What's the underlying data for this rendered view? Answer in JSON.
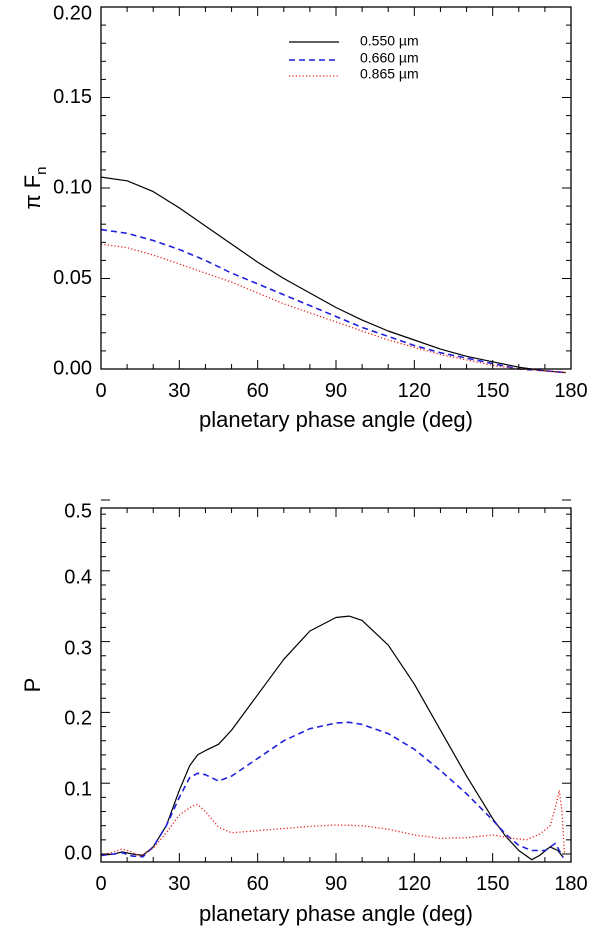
{
  "chart_data": [
    {
      "type": "line",
      "id": "top",
      "xlabel": "planetary phase angle (deg)",
      "ylabel": "π F",
      "ylabel_sub": "n",
      "xlim": [
        0,
        180
      ],
      "ylim": [
        0.0,
        0.2
      ],
      "xticks": [
        0,
        30,
        60,
        90,
        120,
        150,
        180
      ],
      "yticks": [
        0.0,
        0.05,
        0.1,
        0.15,
        0.2
      ],
      "ytick_labels": [
        "0.00",
        "0.05",
        "0.10",
        "0.15",
        "0.20"
      ],
      "legend": "top-center",
      "series": [
        {
          "name": "0.550 µm",
          "color": "#000000",
          "style": "solid",
          "x": [
            0,
            10,
            20,
            30,
            40,
            50,
            60,
            70,
            80,
            90,
            100,
            110,
            120,
            130,
            140,
            150,
            160,
            170,
            178
          ],
          "y": [
            0.106,
            0.104,
            0.098,
            0.089,
            0.079,
            0.069,
            0.059,
            0.05,
            0.042,
            0.034,
            0.027,
            0.021,
            0.016,
            0.011,
            0.007,
            0.004,
            0.001,
            -0.001,
            -0.002
          ]
        },
        {
          "name": "0.660 µm",
          "color": "#1f1fdd",
          "style": "dashed",
          "x": [
            0,
            10,
            20,
            30,
            40,
            50,
            60,
            70,
            80,
            90,
            100,
            110,
            120,
            130,
            140,
            150,
            160,
            170,
            178
          ],
          "y": [
            0.077,
            0.075,
            0.071,
            0.066,
            0.06,
            0.053,
            0.047,
            0.041,
            0.035,
            0.029,
            0.023,
            0.018,
            0.013,
            0.009,
            0.006,
            0.003,
            0.0,
            -0.001,
            -0.002
          ]
        },
        {
          "name": "0.865 µm",
          "color": "#e8211d",
          "style": "dotted",
          "x": [
            0,
            10,
            20,
            30,
            40,
            50,
            60,
            70,
            80,
            90,
            100,
            110,
            120,
            130,
            140,
            150,
            160,
            170,
            178
          ],
          "y": [
            0.069,
            0.067,
            0.063,
            0.058,
            0.053,
            0.048,
            0.042,
            0.036,
            0.031,
            0.026,
            0.021,
            0.016,
            0.012,
            0.008,
            0.005,
            0.002,
            0.0,
            -0.001,
            -0.002
          ]
        }
      ]
    },
    {
      "type": "line",
      "id": "bottom",
      "xlabel": "planetary phase angle (deg)",
      "ylabel": "P",
      "xlim": [
        0,
        180
      ],
      "ylim": [
        0.0,
        0.5
      ],
      "xticks": [
        0,
        30,
        60,
        90,
        120,
        150,
        180
      ],
      "yticks": [
        0.0,
        0.1,
        0.2,
        0.3,
        0.4,
        0.5
      ],
      "ytick_labels": [
        "0.0",
        "0.1",
        "0.2",
        "0.3",
        "0.4",
        "0.5"
      ],
      "series": [
        {
          "name": "0.550 µm",
          "color": "#000000",
          "style": "solid",
          "x": [
            0,
            5,
            8,
            12,
            16,
            20,
            25,
            30,
            34,
            37,
            40,
            45,
            50,
            60,
            70,
            80,
            90,
            95,
            100,
            110,
            120,
            130,
            140,
            150,
            155,
            160,
            165,
            168,
            172,
            175,
            177
          ],
          "y": [
            -0.002,
            0.0,
            0.003,
            0.0,
            -0.002,
            0.01,
            0.04,
            0.09,
            0.125,
            0.14,
            0.146,
            0.155,
            0.175,
            0.225,
            0.275,
            0.315,
            0.334,
            0.336,
            0.33,
            0.295,
            0.24,
            0.175,
            0.11,
            0.05,
            0.025,
            0.005,
            -0.008,
            -0.002,
            0.01,
            0.005,
            -0.005
          ]
        },
        {
          "name": "0.660 µm",
          "color": "#1f1fdd",
          "style": "dashed",
          "x": [
            0,
            5,
            8,
            12,
            16,
            20,
            25,
            30,
            34,
            37,
            40,
            45,
            50,
            60,
            70,
            80,
            90,
            95,
            100,
            110,
            120,
            130,
            140,
            150,
            155,
            160,
            165,
            170,
            174,
            177
          ],
          "y": [
            -0.002,
            0.0,
            0.002,
            -0.003,
            -0.004,
            0.01,
            0.04,
            0.08,
            0.108,
            0.114,
            0.112,
            0.103,
            0.11,
            0.135,
            0.16,
            0.177,
            0.185,
            0.186,
            0.183,
            0.17,
            0.148,
            0.118,
            0.085,
            0.048,
            0.028,
            0.012,
            0.005,
            0.005,
            0.015,
            -0.005
          ]
        },
        {
          "name": "0.865 µm",
          "color": "#e8211d",
          "style": "dotted",
          "x": [
            0,
            4,
            8,
            11,
            15,
            20,
            25,
            30,
            35,
            37,
            40,
            45,
            50,
            60,
            70,
            80,
            90,
            100,
            110,
            120,
            130,
            140,
            150,
            158,
            163,
            168,
            172,
            174,
            175.5,
            176.5,
            177.5
          ],
          "y": [
            -0.002,
            0.002,
            0.007,
            0.004,
            -0.003,
            0.008,
            0.03,
            0.055,
            0.068,
            0.07,
            0.06,
            0.038,
            0.03,
            0.033,
            0.036,
            0.039,
            0.041,
            0.04,
            0.035,
            0.027,
            0.022,
            0.023,
            0.027,
            0.022,
            0.02,
            0.028,
            0.04,
            0.065,
            0.09,
            0.06,
            0.0
          ]
        }
      ]
    }
  ]
}
